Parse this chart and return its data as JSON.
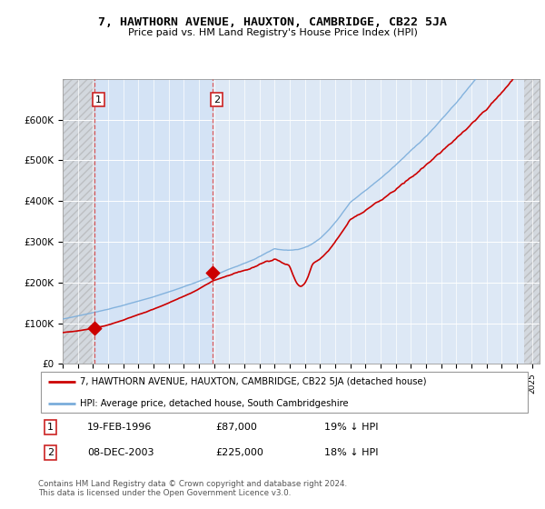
{
  "title": "7, HAWTHORN AVENUE, HAUXTON, CAMBRIDGE, CB22 5JA",
  "subtitle": "Price paid vs. HM Land Registry's House Price Index (HPI)",
  "transaction1": {
    "date": "19-FEB-1996",
    "price": 87000,
    "hpi_pct": "19% ↓ HPI",
    "label": "1"
  },
  "transaction2": {
    "date": "08-DEC-2003",
    "price": 225000,
    "hpi_pct": "18% ↓ HPI",
    "label": "2"
  },
  "legend_property": "7, HAWTHORN AVENUE, HAUXTON, CAMBRIDGE, CB22 5JA (detached house)",
  "legend_hpi": "HPI: Average price, detached house, South Cambridgeshire",
  "footer": "Contains HM Land Registry data © Crown copyright and database right 2024.\nThis data is licensed under the Open Government Licence v3.0.",
  "property_color": "#cc0000",
  "hpi_color": "#7aaddb",
  "background_chart": "#dde8f5",
  "ylim": [
    0,
    700000
  ],
  "yticks": [
    0,
    100000,
    200000,
    300000,
    400000,
    500000,
    600000
  ],
  "ytick_labels": [
    "£0",
    "£100K",
    "£200K",
    "£300K",
    "£400K",
    "£500K",
    "£600K"
  ],
  "xmin": 1994,
  "xmax": 2025.5,
  "t1": 1996.12,
  "t2": 2003.92
}
